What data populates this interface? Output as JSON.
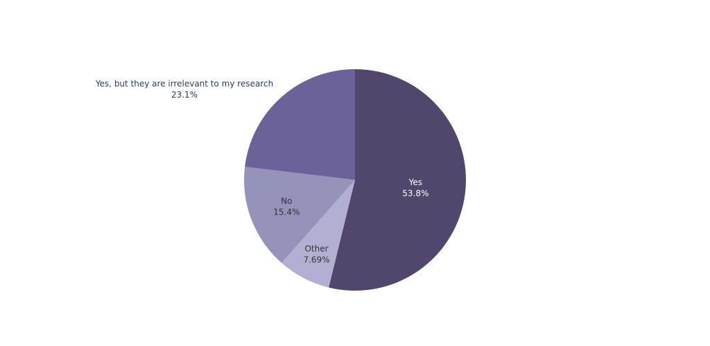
{
  "chart_data": {
    "type": "pie",
    "title": "",
    "slices": [
      {
        "label": "Yes",
        "value": 53.8,
        "value_text": "53.8%",
        "color": "#51476d",
        "text_color": "#ffffff"
      },
      {
        "label": "Other",
        "value": 7.69,
        "value_text": "7.69%",
        "color": "#b2afd3",
        "text_color": "#333333"
      },
      {
        "label": "No",
        "value": 15.4,
        "value_text": "15.4%",
        "color": "#9593ba",
        "text_color": "#333333"
      },
      {
        "label": "Yes, but they are irrelevant to my research",
        "value": 23.1,
        "value_text": "23.1%",
        "color": "#6b6299",
        "text_color": "#2a3f5f"
      }
    ],
    "direction": "clockwise",
    "start": "12 o'clock",
    "legend": "none"
  }
}
